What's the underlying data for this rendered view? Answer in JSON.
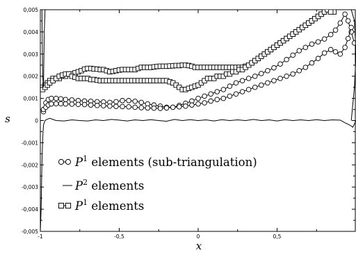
{
  "chart_data": {
    "type": "line",
    "xlabel": "x",
    "ylabel": "s",
    "xlim": [
      -1,
      1
    ],
    "ylim": [
      -0.005,
      0.005
    ],
    "x_ticks": [
      "-1",
      "-0,5",
      "0",
      "0,5"
    ],
    "y_ticks": [
      "0,005",
      "0,004",
      "0,003",
      "0,002",
      "0,001",
      "0",
      "-0,001",
      "-0,002",
      "-0,003",
      "-0,004",
      "-0,005"
    ],
    "grid": false,
    "legend_position": "bottom-left",
    "legend": [
      {
        "prefix": "P",
        "sup": "1",
        "suffix": " elements (sub-triangulation)",
        "marker": "circle"
      },
      {
        "prefix": "P",
        "sup": "2",
        "suffix": " elements",
        "marker": "none"
      },
      {
        "prefix": "P",
        "sup": "1",
        "suffix": " elements",
        "marker": "square"
      }
    ],
    "series": [
      {
        "marker": "circle",
        "x": [
          -0.98,
          -0.965,
          -0.95,
          -0.93,
          -0.9,
          -0.87,
          -0.84,
          -0.8,
          -0.76,
          -0.72,
          -0.68,
          -0.64,
          -0.6,
          -0.56,
          -0.52,
          -0.48,
          -0.44,
          -0.4,
          -0.36,
          -0.32,
          -0.28,
          -0.24,
          -0.2,
          -0.16,
          -0.12,
          -0.08,
          -0.04,
          0.0,
          0.04,
          0.08,
          0.12,
          0.16,
          0.2,
          0.24,
          0.28,
          0.32,
          0.36,
          0.4,
          0.44,
          0.48,
          0.52,
          0.56,
          0.6,
          0.64,
          0.68,
          0.72,
          0.76,
          0.8,
          0.84,
          0.87,
          0.9,
          0.93,
          0.95,
          0.97,
          0.99
        ],
        "y": [
          0.0004,
          0.0008,
          0.00095,
          0.001,
          0.001,
          0.00098,
          0.00095,
          0.00093,
          0.0009,
          0.00088,
          0.00087,
          0.00085,
          0.00084,
          0.00082,
          0.00085,
          0.0009,
          0.0009,
          0.00087,
          0.00082,
          0.00075,
          0.0007,
          0.00065,
          0.0006,
          0.0006,
          0.00068,
          0.00078,
          0.00088,
          0.001,
          0.0011,
          0.0012,
          0.0013,
          0.0014,
          0.00155,
          0.0017,
          0.0018,
          0.0019,
          0.002,
          0.00212,
          0.00225,
          0.00238,
          0.00255,
          0.00275,
          0.00295,
          0.00315,
          0.0033,
          0.00345,
          0.00355,
          0.00368,
          0.00388,
          0.00408,
          0.0044,
          0.0048,
          0.0045,
          0.004,
          0.0035
        ]
      },
      {
        "marker": "circle",
        "x": [
          -0.98,
          -0.965,
          -0.95,
          -0.93,
          -0.9,
          -0.87,
          -0.84,
          -0.8,
          -0.76,
          -0.72,
          -0.68,
          -0.64,
          -0.6,
          -0.56,
          -0.52,
          -0.48,
          -0.44,
          -0.4,
          -0.36,
          -0.32,
          -0.28,
          -0.24,
          -0.2,
          -0.16,
          -0.12,
          -0.08,
          -0.04,
          0.0,
          0.04,
          0.08,
          0.12,
          0.16,
          0.2,
          0.24,
          0.28,
          0.32,
          0.36,
          0.4,
          0.44,
          0.48,
          0.52,
          0.56,
          0.6,
          0.64,
          0.68,
          0.72,
          0.76,
          0.8,
          0.84,
          0.87,
          0.9,
          0.93,
          0.95,
          0.97
        ],
        "y": [
          0.0005,
          0.0006,
          0.0007,
          0.00075,
          0.00076,
          0.00076,
          0.00075,
          0.00074,
          0.00073,
          0.00072,
          0.0007,
          0.00068,
          0.00067,
          0.00065,
          0.00064,
          0.00063,
          0.00062,
          0.0006,
          0.00058,
          0.00057,
          0.00056,
          0.00055,
          0.00057,
          0.0006,
          0.00062,
          0.00065,
          0.0007,
          0.00075,
          0.0008,
          0.00088,
          0.00095,
          0.001,
          0.0011,
          0.0012,
          0.0013,
          0.0014,
          0.0015,
          0.0016,
          0.0017,
          0.0018,
          0.0019,
          0.002,
          0.0021,
          0.00225,
          0.0024,
          0.0026,
          0.0028,
          0.00305,
          0.0032,
          0.0031,
          0.003,
          0.0033,
          0.0037,
          0.0042
        ]
      },
      {
        "marker": "square",
        "x": [
          -0.985,
          -0.97,
          -0.955,
          -0.94,
          -0.92,
          -0.9,
          -0.88,
          -0.86,
          -0.84,
          -0.82,
          -0.8,
          -0.78,
          -0.76,
          -0.74,
          -0.72,
          -0.7,
          -0.68,
          -0.66,
          -0.64,
          -0.62,
          -0.6,
          -0.58,
          -0.56,
          -0.54,
          -0.52,
          -0.5,
          -0.48,
          -0.46,
          -0.44,
          -0.42,
          -0.4,
          -0.38,
          -0.36,
          -0.34,
          -0.32,
          -0.3,
          -0.28,
          -0.26,
          -0.24,
          -0.22,
          -0.2,
          -0.18,
          -0.16,
          -0.14,
          -0.12,
          -0.1,
          -0.08,
          -0.06,
          -0.04,
          -0.02,
          0.0,
          0.02,
          0.04,
          0.06,
          0.08,
          0.1,
          0.12,
          0.14,
          0.16,
          0.18,
          0.2,
          0.22,
          0.24,
          0.26,
          0.28,
          0.3,
          0.32,
          0.34,
          0.36,
          0.38,
          0.4,
          0.42,
          0.44,
          0.46,
          0.48,
          0.5,
          0.52,
          0.54,
          0.56,
          0.58,
          0.6,
          0.62,
          0.64,
          0.66,
          0.68,
          0.7,
          0.72,
          0.74,
          0.76,
          0.78,
          0.8,
          0.82,
          0.84,
          0.86
        ],
        "y": [
          0.0015,
          0.0016,
          0.0017,
          0.0018,
          0.0019,
          0.0019,
          0.0019,
          0.002,
          0.002,
          0.0021,
          0.0021,
          0.00215,
          0.0022,
          0.00225,
          0.00232,
          0.00235,
          0.00235,
          0.00233,
          0.00232,
          0.0023,
          0.0023,
          0.00225,
          0.0022,
          0.00222,
          0.00225,
          0.00228,
          0.0023,
          0.0023,
          0.0023,
          0.0023,
          0.0023,
          0.00235,
          0.0024,
          0.0024,
          0.0024,
          0.0024,
          0.00242,
          0.00244,
          0.00245,
          0.00245,
          0.00245,
          0.00246,
          0.00247,
          0.00248,
          0.00248,
          0.0025,
          0.0025,
          0.00248,
          0.00245,
          0.0024,
          0.0024,
          0.0024,
          0.0024,
          0.0024,
          0.0024,
          0.0024,
          0.0024,
          0.0024,
          0.0024,
          0.0024,
          0.0024,
          0.0024,
          0.0024,
          0.0024,
          0.0024,
          0.00245,
          0.0025,
          0.0026,
          0.0027,
          0.0028,
          0.0029,
          0.003,
          0.0031,
          0.0032,
          0.0033,
          0.0034,
          0.0035,
          0.0036,
          0.0037,
          0.0038,
          0.0039,
          0.004,
          0.0041,
          0.0042,
          0.0043,
          0.0044,
          0.0045,
          0.0046,
          0.0047,
          0.0048,
          0.0049,
          0.005,
          0.005,
          0.0049
        ]
      },
      {
        "marker": "square",
        "x": [
          -0.985,
          -0.97,
          -0.955,
          -0.94,
          -0.92,
          -0.9,
          -0.88,
          -0.86,
          -0.84,
          -0.82,
          -0.8,
          -0.78,
          -0.76,
          -0.74,
          -0.72,
          -0.7,
          -0.68,
          -0.66,
          -0.64,
          -0.62,
          -0.6,
          -0.58,
          -0.56,
          -0.54,
          -0.52,
          -0.5,
          -0.48,
          -0.46,
          -0.44,
          -0.42,
          -0.4,
          -0.38,
          -0.36,
          -0.34,
          -0.32,
          -0.3,
          -0.28,
          -0.26,
          -0.24,
          -0.22,
          -0.2,
          -0.18,
          -0.16,
          -0.14,
          -0.12,
          -0.1,
          -0.08,
          -0.06,
          -0.04,
          -0.02,
          0.0,
          0.02,
          0.04,
          0.06,
          0.08,
          0.1,
          0.12,
          0.14,
          0.16,
          0.18,
          0.2,
          0.22,
          0.24,
          0.26,
          0.28,
          0.3,
          0.32,
          0.34,
          0.36,
          0.38,
          0.4,
          0.42,
          0.44,
          0.46,
          0.48,
          0.5,
          0.52,
          0.54,
          0.56,
          0.58,
          0.6,
          0.62,
          0.64,
          0.66,
          0.68,
          0.7,
          0.72,
          0.74,
          0.76,
          0.78,
          0.8,
          0.82,
          0.84
        ],
        "y": [
          0.0014,
          0.0015,
          0.0016,
          0.0017,
          0.0018,
          0.0019,
          0.002,
          0.00205,
          0.0021,
          0.0021,
          0.002,
          0.00195,
          0.0019,
          0.0019,
          0.0019,
          0.0019,
          0.00185,
          0.00185,
          0.00182,
          0.0018,
          0.0018,
          0.0018,
          0.0018,
          0.0018,
          0.0018,
          0.0018,
          0.0018,
          0.0018,
          0.0018,
          0.0018,
          0.0018,
          0.0018,
          0.0018,
          0.0018,
          0.0018,
          0.0018,
          0.0018,
          0.0018,
          0.0018,
          0.0018,
          0.0018,
          0.00175,
          0.0017,
          0.0016,
          0.0015,
          0.0014,
          0.0014,
          0.00145,
          0.0015,
          0.00155,
          0.0016,
          0.0017,
          0.0018,
          0.0019,
          0.0019,
          0.0019,
          0.002,
          0.002,
          0.002,
          0.0021,
          0.0021,
          0.0022,
          0.0022,
          0.0023,
          0.0023,
          0.0024,
          0.0025,
          0.0026,
          0.0027,
          0.0028,
          0.0029,
          0.003,
          0.0031,
          0.0032,
          0.0033,
          0.0034,
          0.0035,
          0.0036,
          0.0037,
          0.0038,
          0.0039,
          0.004,
          0.0041,
          0.0042,
          0.0043,
          0.0044,
          0.0045,
          0.0046,
          0.0047,
          0.0048,
          0.0049,
          0.005,
          0.0049
        ]
      },
      {
        "marker": "none",
        "x": [
          -1.0,
          -0.995,
          -0.99,
          -0.985,
          -0.98,
          -0.97,
          -0.96,
          -0.94,
          -0.92,
          -0.9,
          -0.85,
          -0.8,
          -0.75,
          -0.7,
          -0.65,
          -0.6,
          -0.55,
          -0.5,
          -0.45,
          -0.4,
          -0.35,
          -0.3,
          -0.25,
          -0.2,
          -0.15,
          -0.1,
          -0.05,
          0.0,
          0.05,
          0.1,
          0.15,
          0.2,
          0.25,
          0.3,
          0.35,
          0.4,
          0.45,
          0.5,
          0.55,
          0.6,
          0.65,
          0.7,
          0.75,
          0.8,
          0.85,
          0.9,
          0.93,
          0.96,
          0.98,
          1.0
        ],
        "y": [
          -0.005,
          -0.004,
          -0.002,
          -0.0008,
          -0.0002,
          0.0,
          5e-05,
          0.0001,
          5e-05,
          0.0,
          -2e-05,
          3e-05,
          0.0,
          -2e-05,
          3e-05,
          0.0,
          5e-05,
          2e-05,
          -2e-05,
          3e-05,
          0.0,
          4e-05,
          0.0,
          -3e-05,
          5e-05,
          0.0,
          4e-05,
          0.0,
          3e-05,
          -2e-05,
          4e-05,
          0.0,
          3e-05,
          0.0,
          5e-05,
          0.0,
          3e-05,
          -2e-05,
          4e-05,
          0.0,
          3e-05,
          0.0,
          4e-05,
          0.0,
          3e-05,
          2e-05,
          -0.0001,
          -0.0002,
          -0.0003,
          0.0
        ]
      },
      {
        "marker": "none",
        "x": [
          -0.99,
          -0.985,
          -0.98,
          -0.975,
          -0.97
        ],
        "y": [
          0.005,
          0.002,
          0.0015,
          0.004,
          0.005
        ]
      },
      {
        "marker": "none",
        "x": [
          0.97,
          0.99,
          1.0,
          0.99,
          0.97
        ],
        "y": [
          0.0,
          0.0015,
          0.003,
          0.0045,
          0.005
        ]
      }
    ]
  }
}
